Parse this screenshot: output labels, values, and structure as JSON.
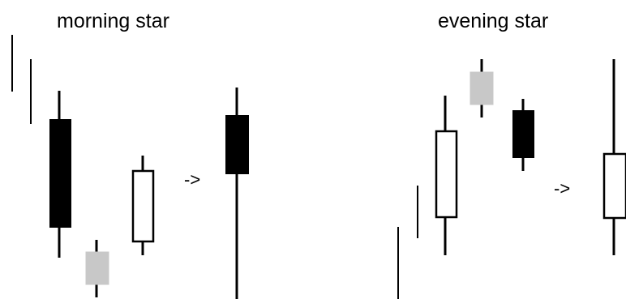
{
  "colors": {
    "background": "#ffffff",
    "bearish": "#000000",
    "bullish": "#ffffff",
    "doji_star": "#c8c8c8",
    "outline": "#000000"
  },
  "panels": [
    {
      "title": "morning star",
      "arrow": "->"
    },
    {
      "title": "evening star",
      "arrow": "->"
    }
  ]
}
